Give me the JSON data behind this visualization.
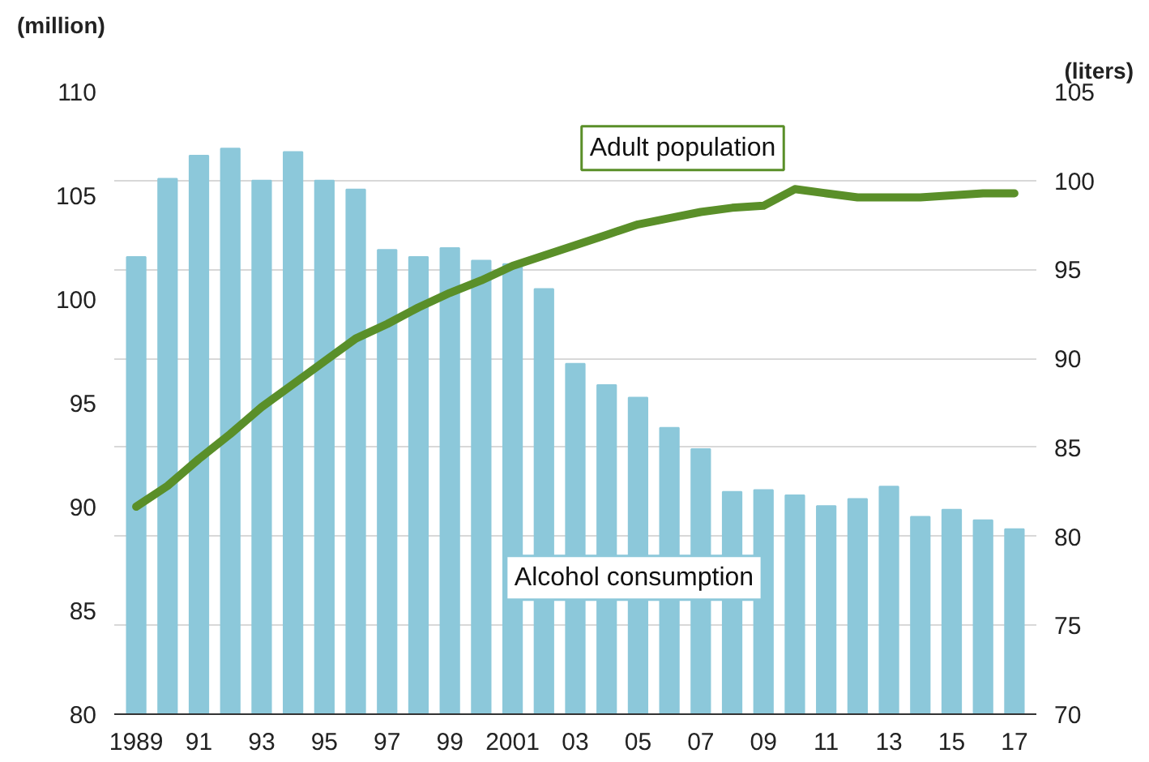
{
  "chart_data": {
    "type": "bar",
    "ylabel": "(million)",
    "y2label": "(liters)",
    "categories": [
      "1989",
      null,
      "91",
      null,
      "93",
      null,
      "95",
      null,
      "97",
      null,
      "99",
      null,
      "2001",
      null,
      "03",
      null,
      "05",
      null,
      "07",
      null,
      "09",
      null,
      "11",
      null,
      "13",
      null,
      "15",
      null,
      "17"
    ],
    "series": [
      {
        "name": "Alcohol consumption",
        "axis": "y2",
        "color": "#8cc8da",
        "values": [
          95.7,
          100.1,
          101.4,
          101.8,
          100.0,
          101.6,
          100.0,
          99.5,
          96.1,
          95.7,
          96.2,
          95.5,
          95.3,
          93.9,
          89.7,
          88.5,
          87.8,
          86.1,
          84.9,
          82.5,
          82.6,
          82.3,
          81.7,
          82.1,
          82.8,
          81.1,
          81.5,
          80.9,
          80.4
        ]
      },
      {
        "name": "Adult population",
        "type": "line",
        "axis": "y",
        "color": "#5a8f29",
        "values": [
          90.0,
          91.0,
          92.3,
          93.5,
          94.8,
          95.9,
          97.0,
          98.1,
          98.8,
          99.6,
          100.3,
          100.9,
          101.6,
          102.1,
          102.6,
          103.1,
          103.6,
          103.9,
          104.2,
          104.4,
          104.5,
          105.3,
          105.1,
          104.9,
          104.9,
          104.9,
          105.0,
          105.1,
          105.1
        ]
      }
    ],
    "ylim": [
      80,
      110
    ],
    "yticks": [
      80,
      85,
      90,
      95,
      100,
      105,
      110
    ],
    "y2lim": [
      70,
      105
    ],
    "y2ticks": [
      70,
      75,
      80,
      85,
      90,
      95,
      100,
      105
    ],
    "grid": "y2",
    "legend": false,
    "marker": "none",
    "line_style": "solid"
  }
}
